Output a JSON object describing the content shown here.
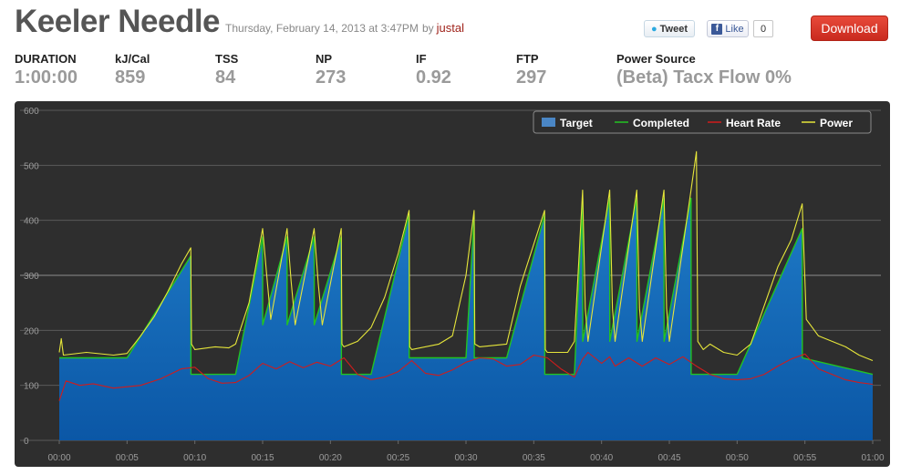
{
  "header": {
    "title": "Keeler Needle",
    "date": "Thursday, February 14, 2013 at 3:47PM",
    "by": "by",
    "user": "justal"
  },
  "social": {
    "tweet_label": "Tweet",
    "like_icon": "f",
    "like_label": "Like",
    "like_count": "0",
    "download_label": "Download"
  },
  "stats": [
    {
      "label": "DURATION",
      "value": "1:00:00"
    },
    {
      "label": "kJ/Cal",
      "value": "859"
    },
    {
      "label": "TSS",
      "value": "84"
    },
    {
      "label": "NP",
      "value": "273"
    },
    {
      "label": "IF",
      "value": "0.92"
    },
    {
      "label": "FTP",
      "value": "297"
    },
    {
      "label": "Power Source",
      "value": "(Beta) Tacx Flow 0%"
    }
  ],
  "colors": {
    "target_top": "#1f7bc7",
    "target_bottom": "#0b57a6",
    "completed": "#22c322",
    "heart_rate": "#d01c1c",
    "power": "#e6e63a",
    "panel": "#2e2e2e"
  },
  "chart_data": {
    "type": "area",
    "title": "",
    "xlabel": "",
    "ylabel": "",
    "xlim": [
      0,
      60
    ],
    "ylim": [
      0,
      600
    ],
    "grid": true,
    "legend_position": "top-right",
    "x_ticks": [
      "00:00",
      "00:05",
      "00:10",
      "00:15",
      "00:20",
      "00:25",
      "00:30",
      "00:35",
      "00:40",
      "00:45",
      "00:50",
      "00:55",
      "01:00"
    ],
    "y_ticks": [
      "0",
      "100",
      "200",
      "300",
      "400",
      "500",
      "600"
    ],
    "legend": [
      "Target",
      "Completed",
      "Heart Rate",
      "Power"
    ],
    "series": [
      {
        "name": "Target",
        "kind": "area",
        "points": [
          [
            0,
            150
          ],
          [
            5,
            150
          ],
          [
            9.7,
            335
          ],
          [
            9.71,
            120
          ],
          [
            13,
            120
          ],
          [
            15,
            370
          ],
          [
            15.01,
            210
          ],
          [
            16.8,
            370
          ],
          [
            16.81,
            210
          ],
          [
            18.8,
            370
          ],
          [
            18.81,
            210
          ],
          [
            20.8,
            370
          ],
          [
            20.81,
            120
          ],
          [
            23,
            120
          ],
          [
            25.8,
            410
          ],
          [
            25.81,
            150
          ],
          [
            30,
            150
          ],
          [
            30.6,
            410
          ],
          [
            30.61,
            150
          ],
          [
            33,
            150
          ],
          [
            35.8,
            410
          ],
          [
            35.81,
            120
          ],
          [
            38,
            120
          ],
          [
            38.6,
            440
          ],
          [
            38.61,
            180
          ],
          [
            40.6,
            440
          ],
          [
            40.61,
            180
          ],
          [
            42.6,
            440
          ],
          [
            42.61,
            180
          ],
          [
            44.6,
            440
          ],
          [
            44.61,
            180
          ],
          [
            46.6,
            440
          ],
          [
            46.61,
            120
          ],
          [
            50,
            120
          ],
          [
            54.8,
            385
          ],
          [
            54.81,
            150
          ],
          [
            60,
            120
          ]
        ]
      },
      {
        "name": "Completed",
        "kind": "line",
        "points": [
          [
            0,
            150
          ],
          [
            5,
            150
          ],
          [
            9.7,
            335
          ],
          [
            9.71,
            120
          ],
          [
            13,
            120
          ],
          [
            15,
            370
          ],
          [
            15.01,
            210
          ],
          [
            16.8,
            370
          ],
          [
            16.81,
            210
          ],
          [
            18.8,
            370
          ],
          [
            18.81,
            210
          ],
          [
            20.8,
            370
          ],
          [
            20.81,
            120
          ],
          [
            23,
            120
          ],
          [
            25.8,
            410
          ],
          [
            25.81,
            150
          ],
          [
            30,
            150
          ],
          [
            30.6,
            410
          ],
          [
            30.61,
            150
          ],
          [
            33,
            150
          ],
          [
            35.8,
            410
          ],
          [
            35.81,
            120
          ],
          [
            38,
            120
          ],
          [
            38.6,
            440
          ],
          [
            38.61,
            180
          ],
          [
            40.6,
            440
          ],
          [
            40.61,
            180
          ],
          [
            42.6,
            440
          ],
          [
            42.61,
            180
          ],
          [
            44.6,
            440
          ],
          [
            44.61,
            180
          ],
          [
            46.6,
            440
          ],
          [
            46.61,
            120
          ],
          [
            50,
            120
          ],
          [
            54.8,
            385
          ],
          [
            54.81,
            150
          ],
          [
            60,
            120
          ]
        ]
      },
      {
        "name": "Heart Rate",
        "kind": "line",
        "points": [
          [
            0,
            72
          ],
          [
            0.5,
            108
          ],
          [
            1.5,
            100
          ],
          [
            2.5,
            103
          ],
          [
            4,
            95
          ],
          [
            6,
            100
          ],
          [
            7.5,
            112
          ],
          [
            9,
            130
          ],
          [
            10,
            133
          ],
          [
            11,
            112
          ],
          [
            12,
            104
          ],
          [
            13,
            105
          ],
          [
            14,
            118
          ],
          [
            15,
            140
          ],
          [
            16,
            130
          ],
          [
            17,
            143
          ],
          [
            18,
            132
          ],
          [
            19,
            142
          ],
          [
            20,
            135
          ],
          [
            21,
            150
          ],
          [
            22,
            120
          ],
          [
            23,
            110
          ],
          [
            24,
            115
          ],
          [
            25,
            125
          ],
          [
            26,
            145
          ],
          [
            27,
            122
          ],
          [
            28,
            118
          ],
          [
            29,
            128
          ],
          [
            30,
            142
          ],
          [
            31,
            150
          ],
          [
            32,
            148
          ],
          [
            33,
            135
          ],
          [
            34,
            138
          ],
          [
            35,
            155
          ],
          [
            36,
            150
          ],
          [
            37,
            130
          ],
          [
            38,
            115
          ],
          [
            38.6,
            148
          ],
          [
            39,
            160
          ],
          [
            40,
            140
          ],
          [
            40.6,
            152
          ],
          [
            41,
            135
          ],
          [
            42,
            150
          ],
          [
            43,
            135
          ],
          [
            44,
            150
          ],
          [
            45,
            138
          ],
          [
            46,
            152
          ],
          [
            47,
            135
          ],
          [
            48,
            120
          ],
          [
            49,
            112
          ],
          [
            50,
            110
          ],
          [
            51,
            112
          ],
          [
            52,
            120
          ],
          [
            53,
            135
          ],
          [
            54,
            148
          ],
          [
            55,
            157
          ],
          [
            56,
            130
          ],
          [
            57,
            120
          ],
          [
            58,
            110
          ],
          [
            59,
            105
          ],
          [
            60,
            102
          ]
        ]
      },
      {
        "name": "Power",
        "kind": "line",
        "points": [
          [
            0,
            160
          ],
          [
            0.15,
            185
          ],
          [
            0.3,
            155
          ],
          [
            2,
            160
          ],
          [
            4,
            155
          ],
          [
            5,
            158
          ],
          [
            6,
            190
          ],
          [
            7,
            225
          ],
          [
            8,
            270
          ],
          [
            9,
            320
          ],
          [
            9.7,
            350
          ],
          [
            9.75,
            175
          ],
          [
            10,
            165
          ],
          [
            11.5,
            170
          ],
          [
            12.5,
            168
          ],
          [
            13,
            175
          ],
          [
            14,
            250
          ],
          [
            15,
            385
          ],
          [
            15.3,
            300
          ],
          [
            15.6,
            220
          ],
          [
            16.8,
            385
          ],
          [
            17.1,
            290
          ],
          [
            17.4,
            210
          ],
          [
            18.8,
            385
          ],
          [
            19.1,
            285
          ],
          [
            19.4,
            210
          ],
          [
            20.8,
            385
          ],
          [
            20.85,
            175
          ],
          [
            21,
            170
          ],
          [
            22,
            180
          ],
          [
            23,
            205
          ],
          [
            24,
            260
          ],
          [
            25,
            340
          ],
          [
            25.8,
            418
          ],
          [
            25.85,
            170
          ],
          [
            26,
            165
          ],
          [
            28,
            175
          ],
          [
            29,
            190
          ],
          [
            30,
            300
          ],
          [
            30.6,
            418
          ],
          [
            30.65,
            175
          ],
          [
            31,
            170
          ],
          [
            33,
            175
          ],
          [
            34,
            280
          ],
          [
            35.8,
            418
          ],
          [
            35.85,
            165
          ],
          [
            36,
            160
          ],
          [
            37.5,
            160
          ],
          [
            38,
            180
          ],
          [
            38.6,
            455
          ],
          [
            38.8,
            240
          ],
          [
            39,
            180
          ],
          [
            40.6,
            455
          ],
          [
            40.8,
            240
          ],
          [
            41,
            180
          ],
          [
            42.6,
            455
          ],
          [
            42.8,
            240
          ],
          [
            43,
            180
          ],
          [
            44.6,
            455
          ],
          [
            44.8,
            240
          ],
          [
            45,
            180
          ],
          [
            46.6,
            455
          ],
          [
            47,
            525
          ],
          [
            47.1,
            180
          ],
          [
            47.5,
            165
          ],
          [
            48,
            175
          ],
          [
            49,
            160
          ],
          [
            50,
            155
          ],
          [
            51,
            175
          ],
          [
            52,
            245
          ],
          [
            53,
            315
          ],
          [
            54,
            365
          ],
          [
            54.8,
            430
          ],
          [
            55.1,
            220
          ],
          [
            56,
            190
          ],
          [
            57,
            180
          ],
          [
            58,
            170
          ],
          [
            59,
            155
          ],
          [
            60,
            145
          ]
        ]
      }
    ]
  }
}
